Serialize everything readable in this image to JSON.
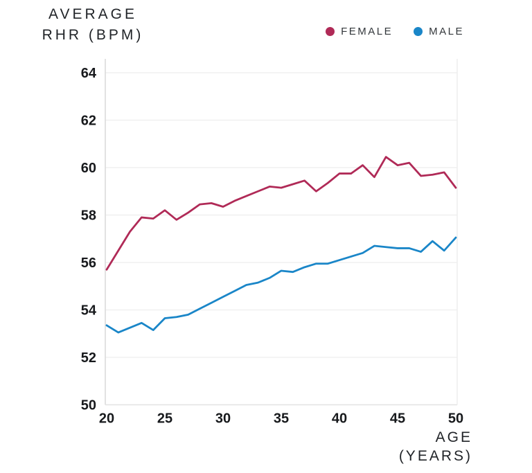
{
  "title": {
    "line1": "AVERAGE",
    "line2": "RHR (BPM)"
  },
  "legend": [
    {
      "label": "FEMALE",
      "color": "#b02a57"
    },
    {
      "label": "MALE",
      "color": "#1a86c8"
    }
  ],
  "x_axis_title": {
    "line1": "AGE",
    "line2": "(YEARS)"
  },
  "chart_data": {
    "type": "line",
    "title": "AVERAGE RHR (BPM)",
    "xlabel": "AGE (YEARS)",
    "ylabel": "AVERAGE RHR (BPM)",
    "x": [
      20,
      21,
      22,
      23,
      24,
      25,
      26,
      27,
      28,
      29,
      30,
      31,
      32,
      33,
      34,
      35,
      36,
      37,
      38,
      39,
      40,
      41,
      42,
      43,
      44,
      45,
      46,
      47,
      48,
      49,
      50
    ],
    "series": [
      {
        "name": "FEMALE",
        "color": "#b02a57",
        "values": [
          55.7,
          56.5,
          57.3,
          57.9,
          57.85,
          58.2,
          57.8,
          58.1,
          58.45,
          58.5,
          58.35,
          58.6,
          58.8,
          59.0,
          59.2,
          59.15,
          59.3,
          59.45,
          59.0,
          59.35,
          59.75,
          59.75,
          60.1,
          59.6,
          60.45,
          60.1,
          60.2,
          59.65,
          59.7,
          59.8,
          59.15
        ]
      },
      {
        "name": "MALE",
        "color": "#1a86c8",
        "values": [
          53.35,
          53.05,
          53.25,
          53.45,
          53.15,
          53.65,
          53.7,
          53.8,
          54.05,
          54.3,
          54.55,
          54.8,
          55.05,
          55.15,
          55.35,
          55.65,
          55.6,
          55.8,
          55.95,
          55.95,
          56.1,
          56.25,
          56.4,
          56.7,
          56.65,
          56.6,
          56.6,
          56.45,
          56.9,
          56.5,
          57.05
        ]
      }
    ],
    "xticks": [
      20,
      25,
      30,
      35,
      40,
      45,
      50
    ],
    "yticks": [
      50,
      52,
      54,
      56,
      58,
      60,
      62,
      64
    ],
    "xlim": [
      20,
      50
    ],
    "ylim": [
      50,
      64
    ],
    "grid": "horizontal",
    "legend_position": "top-right"
  }
}
